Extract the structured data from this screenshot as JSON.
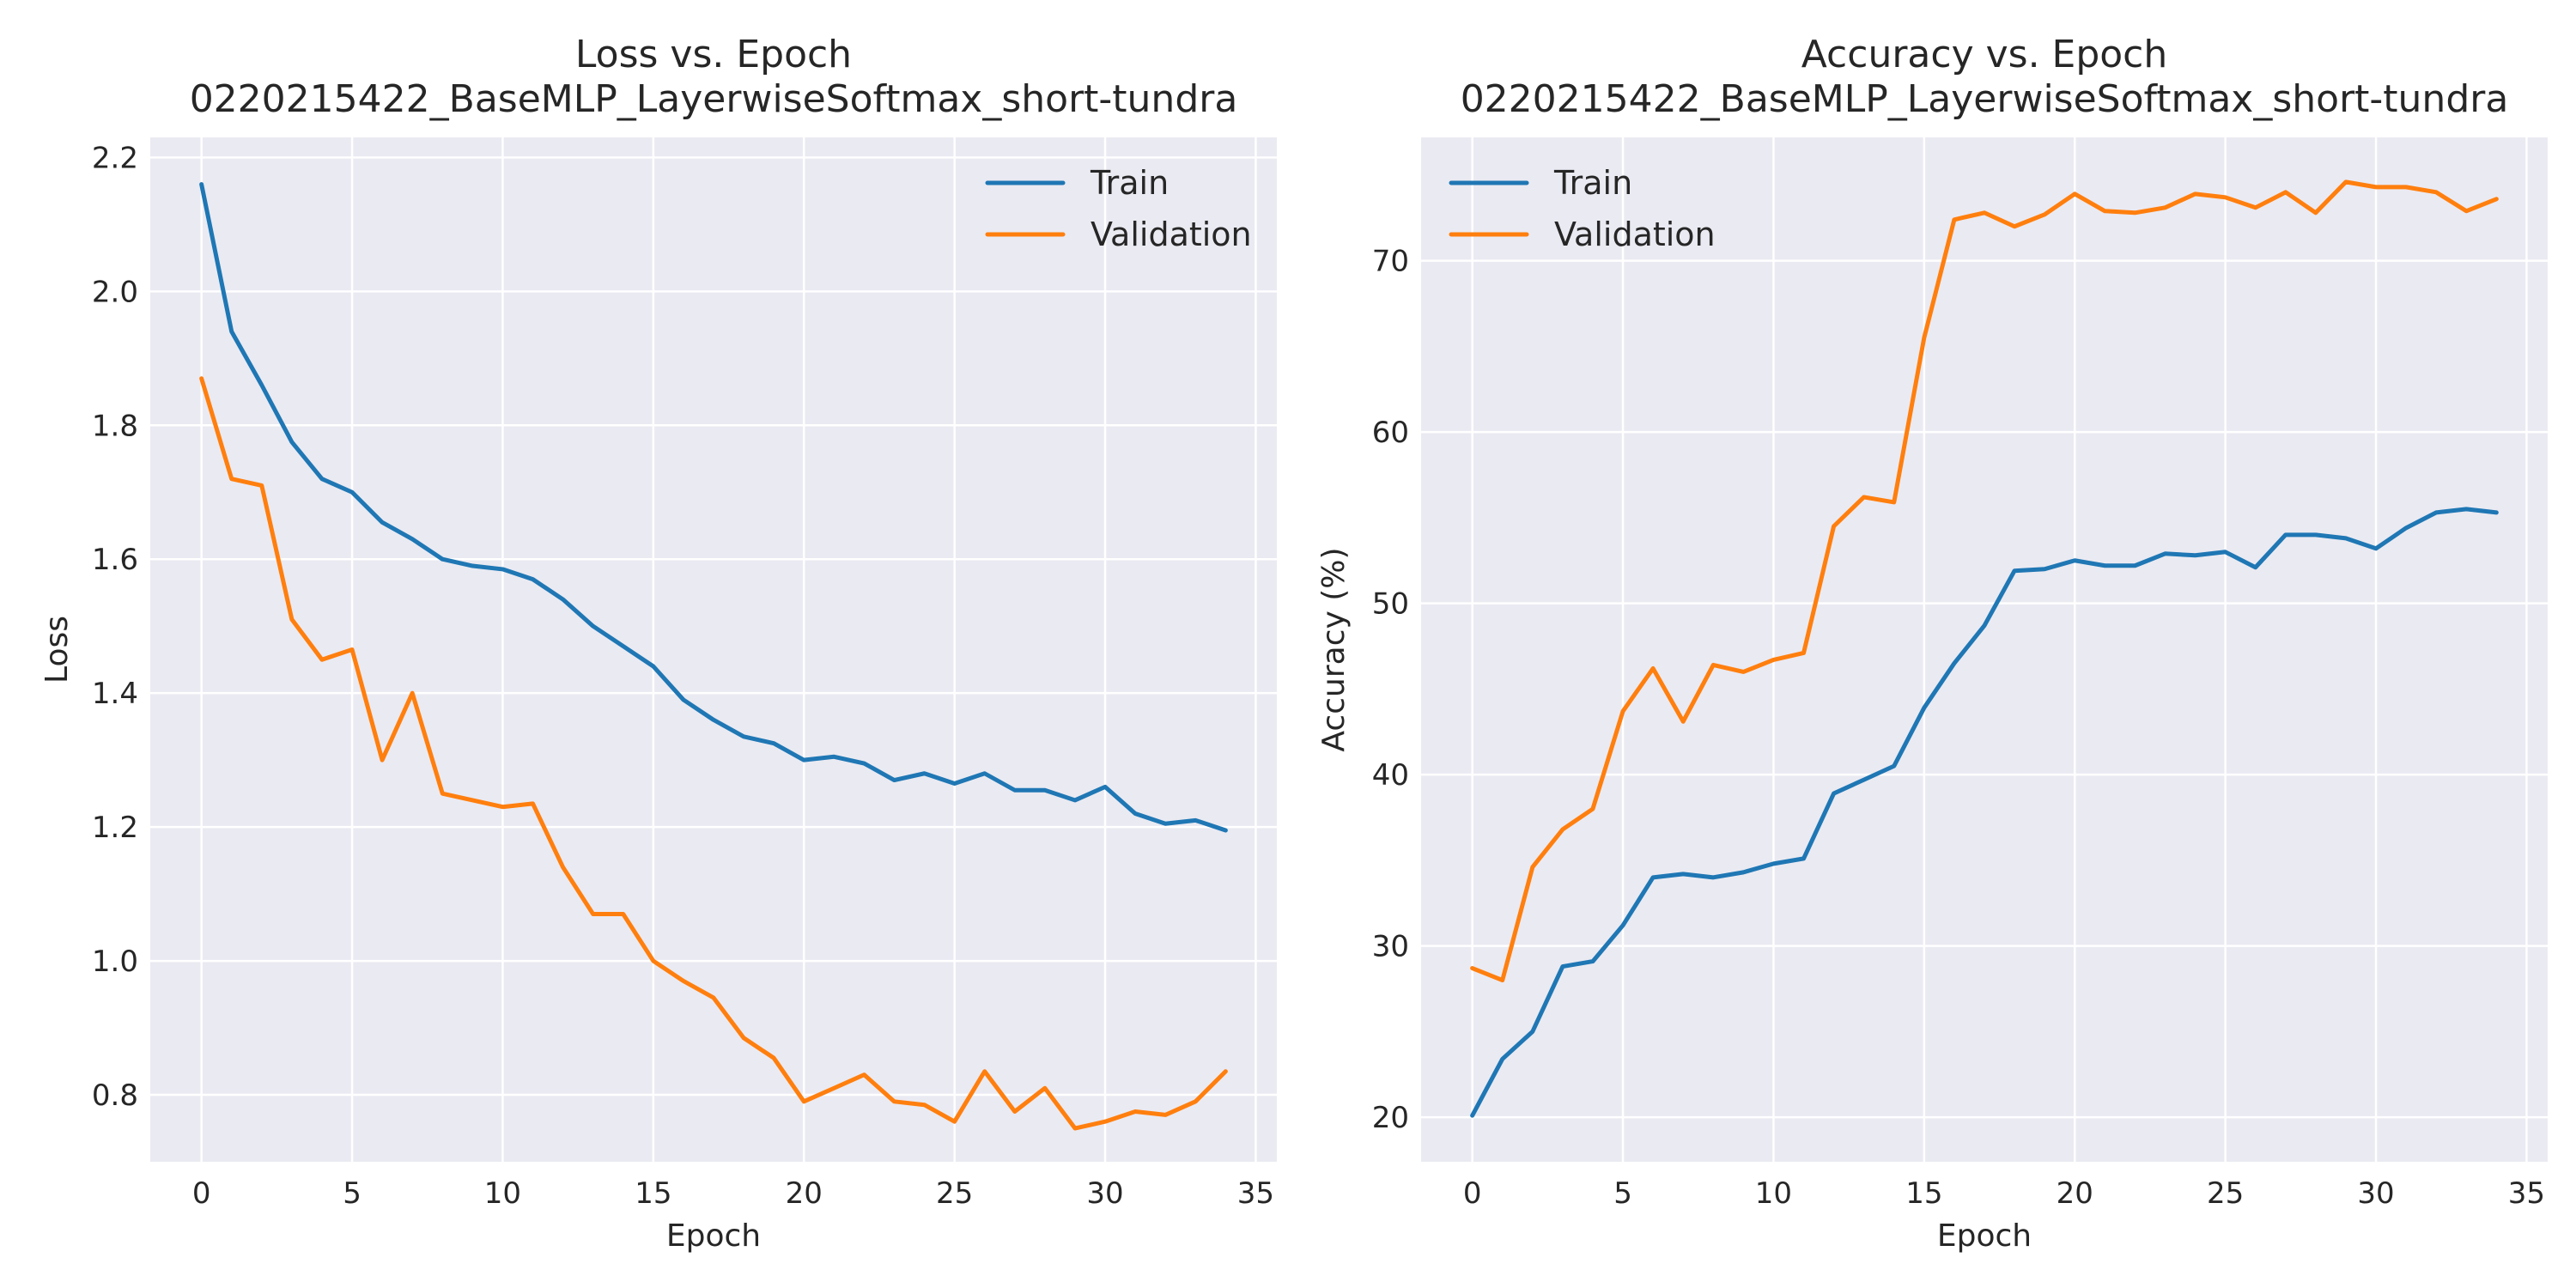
{
  "colors": {
    "train": "#1f77b4",
    "validation": "#ff7f0e",
    "axes_background": "#eaeaf2",
    "grid": "#ffffff",
    "text": "#262626"
  },
  "chart_data": [
    {
      "type": "line",
      "title_line1": "Loss vs. Epoch",
      "title_line2": "0220215422_BaseMLP_LayerwiseSoftmax_short-tundra",
      "xlabel": "Epoch",
      "ylabel": "Loss",
      "xlim": [
        -1.7,
        35.7
      ],
      "ylim": [
        0.7,
        2.23
      ],
      "xticks": [
        0,
        5,
        10,
        15,
        20,
        25,
        30,
        35
      ],
      "xtick_labels": [
        "0",
        "5",
        "10",
        "15",
        "20",
        "25",
        "30",
        "35"
      ],
      "yticks": [
        0.8,
        1.0,
        1.2,
        1.4,
        1.6,
        1.8,
        2.0,
        2.2
      ],
      "ytick_labels": [
        "0.8",
        "1.0",
        "1.2",
        "1.4",
        "1.6",
        "1.8",
        "2.0",
        "2.2"
      ],
      "grid": true,
      "legend_position": "top-right",
      "x": [
        0,
        1,
        2,
        3,
        4,
        5,
        6,
        7,
        8,
        9,
        10,
        11,
        12,
        13,
        14,
        15,
        16,
        17,
        18,
        19,
        20,
        21,
        22,
        23,
        24,
        25,
        26,
        27,
        28,
        29,
        30,
        31,
        32,
        33,
        34
      ],
      "series": [
        {
          "name": "Train",
          "color_key": "train",
          "values": [
            2.16,
            1.94,
            1.86,
            1.775,
            1.72,
            1.7,
            1.655,
            1.63,
            1.6,
            1.59,
            1.585,
            1.57,
            1.54,
            1.5,
            1.47,
            1.44,
            1.39,
            1.36,
            1.335,
            1.325,
            1.3,
            1.305,
            1.295,
            1.27,
            1.28,
            1.265,
            1.28,
            1.255,
            1.255,
            1.24,
            1.26,
            1.22,
            1.205,
            1.21,
            1.195
          ]
        },
        {
          "name": "Validation",
          "color_key": "validation",
          "values": [
            1.87,
            1.72,
            1.71,
            1.51,
            1.45,
            1.465,
            1.3,
            1.4,
            1.25,
            1.24,
            1.23,
            1.235,
            1.14,
            1.07,
            1.07,
            1.0,
            0.97,
            0.945,
            0.885,
            0.855,
            0.79,
            0.81,
            0.83,
            0.79,
            0.785,
            0.76,
            0.835,
            0.775,
            0.81,
            0.75,
            0.76,
            0.775,
            0.77,
            0.79,
            0.835
          ]
        }
      ]
    },
    {
      "type": "line",
      "title_line1": "Accuracy vs. Epoch",
      "title_line2": "0220215422_BaseMLP_LayerwiseSoftmax_short-tundra",
      "xlabel": "Epoch",
      "ylabel": "Accuracy (%)",
      "xlim": [
        -1.7,
        35.7
      ],
      "ylim": [
        17.4,
        77.2
      ],
      "xticks": [
        0,
        5,
        10,
        15,
        20,
        25,
        30,
        35
      ],
      "xtick_labels": [
        "0",
        "5",
        "10",
        "15",
        "20",
        "25",
        "30",
        "35"
      ],
      "yticks": [
        20,
        30,
        40,
        50,
        60,
        70
      ],
      "ytick_labels": [
        "20",
        "30",
        "40",
        "50",
        "60",
        "70"
      ],
      "grid": true,
      "legend_position": "top-left",
      "x": [
        0,
        1,
        2,
        3,
        4,
        5,
        6,
        7,
        8,
        9,
        10,
        11,
        12,
        13,
        14,
        15,
        16,
        17,
        18,
        19,
        20,
        21,
        22,
        23,
        24,
        25,
        26,
        27,
        28,
        29,
        30,
        31,
        32,
        33,
        34
      ],
      "series": [
        {
          "name": "Train",
          "color_key": "train",
          "values": [
            20.1,
            23.4,
            25.0,
            28.8,
            29.1,
            31.2,
            34.0,
            34.2,
            34.0,
            34.3,
            34.8,
            35.1,
            38.9,
            39.7,
            40.5,
            43.9,
            46.5,
            48.7,
            51.9,
            52.0,
            52.5,
            52.2,
            52.2,
            52.9,
            52.8,
            53.0,
            52.1,
            54.0,
            54.0,
            53.8,
            53.2,
            54.4,
            55.3,
            55.5,
            55.3
          ]
        },
        {
          "name": "Validation",
          "color_key": "validation",
          "values": [
            28.7,
            28.0,
            34.6,
            36.8,
            38.0,
            43.7,
            46.2,
            43.1,
            46.4,
            46.0,
            46.7,
            47.1,
            54.5,
            56.2,
            55.9,
            65.5,
            72.4,
            72.8,
            72.0,
            72.7,
            73.9,
            72.9,
            72.8,
            73.1,
            73.9,
            73.7,
            73.1,
            74.0,
            72.8,
            74.6,
            74.3,
            74.3,
            74.0,
            72.9,
            73.6
          ]
        }
      ]
    }
  ]
}
